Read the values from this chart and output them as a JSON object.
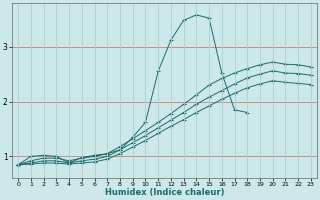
{
  "xlabel": "Humidex (Indice chaleur)",
  "ylabel": "",
  "xlim": [
    -0.5,
    23.5
  ],
  "ylim": [
    0.6,
    3.8
  ],
  "bg_color": "#cce8e8",
  "grid_color": "#b0d4d4",
  "line_color": "#1a6b6b",
  "yticks": [
    1,
    2,
    3
  ],
  "xticks": [
    0,
    1,
    2,
    3,
    4,
    5,
    6,
    7,
    8,
    9,
    10,
    11,
    12,
    13,
    14,
    15,
    16,
    17,
    18,
    19,
    20,
    21,
    22,
    23
  ],
  "line1_x": [
    0,
    1,
    2,
    3,
    4,
    5,
    6,
    7,
    8,
    9,
    10,
    11,
    12,
    13,
    14,
    15,
    16,
    17,
    18
  ],
  "line1_y": [
    0.85,
    1.0,
    1.02,
    1.0,
    0.88,
    0.98,
    1.02,
    1.05,
    1.12,
    1.35,
    1.62,
    2.55,
    3.12,
    3.48,
    3.58,
    3.52,
    2.52,
    1.85,
    1.8
  ],
  "line2_x": [
    0,
    1,
    2,
    3,
    4,
    5,
    6,
    7,
    8,
    9,
    10,
    11,
    12,
    13,
    14,
    15,
    16,
    17,
    18,
    19,
    20,
    21,
    22,
    23
  ],
  "line2_y": [
    0.85,
    0.92,
    0.97,
    0.97,
    0.92,
    0.97,
    1.0,
    1.05,
    1.18,
    1.32,
    1.47,
    1.62,
    1.78,
    1.95,
    2.12,
    2.3,
    2.42,
    2.52,
    2.6,
    2.67,
    2.72,
    2.68,
    2.67,
    2.63
  ],
  "line3_x": [
    0,
    1,
    2,
    3,
    4,
    5,
    6,
    7,
    8,
    9,
    10,
    11,
    12,
    13,
    14,
    15,
    16,
    17,
    18,
    19,
    20,
    21,
    22,
    23
  ],
  "line3_y": [
    0.85,
    0.88,
    0.92,
    0.92,
    0.88,
    0.92,
    0.95,
    1.0,
    1.12,
    1.25,
    1.38,
    1.52,
    1.66,
    1.8,
    1.95,
    2.08,
    2.2,
    2.32,
    2.43,
    2.5,
    2.56,
    2.52,
    2.51,
    2.48
  ],
  "line4_x": [
    0,
    1,
    2,
    3,
    4,
    5,
    6,
    7,
    8,
    9,
    10,
    11,
    12,
    13,
    14,
    15,
    16,
    17,
    18,
    19,
    20,
    21,
    22,
    23
  ],
  "line4_y": [
    0.85,
    0.86,
    0.88,
    0.88,
    0.86,
    0.88,
    0.9,
    0.95,
    1.05,
    1.17,
    1.29,
    1.42,
    1.55,
    1.67,
    1.8,
    1.92,
    2.04,
    2.15,
    2.25,
    2.32,
    2.38,
    2.35,
    2.33,
    2.31
  ]
}
